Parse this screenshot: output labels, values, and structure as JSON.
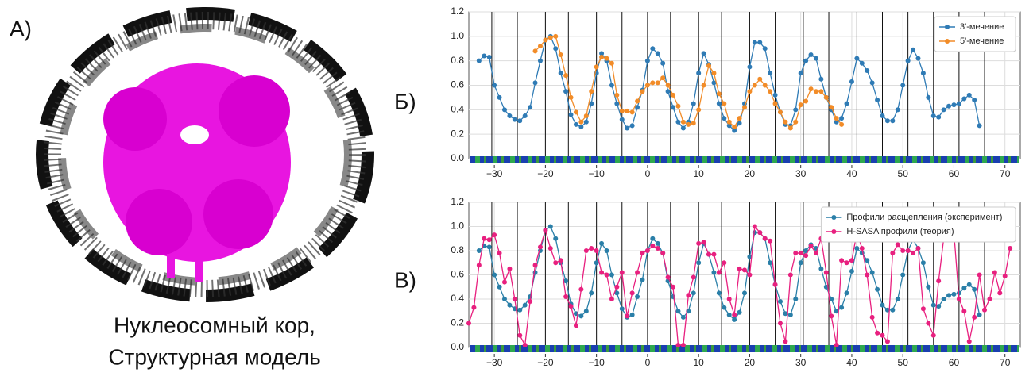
{
  "panels": {
    "a": "А)",
    "b": "Б)",
    "c": "В)"
  },
  "caption": [
    "Нуклеосомный кор,",
    "Структурная модель"
  ],
  "chart_data": [
    {
      "type": "line",
      "xlim": [
        -35,
        73
      ],
      "ylim": [
        0,
        1.2
      ],
      "xticks": [
        {
          "value": -30,
          "label": "−30"
        },
        {
          "value": -20,
          "label": "−20"
        },
        {
          "value": -10,
          "label": "−10"
        },
        0,
        10,
        20,
        30,
        40,
        50,
        60,
        70
      ],
      "yticks": [
        {
          "value": 0,
          "label": "0.0"
        },
        0.2,
        0.4,
        0.6,
        0.8,
        {
          "value": 1,
          "label": "1.0"
        },
        1.2
      ],
      "grid": true,
      "legend": "upper right",
      "vlines": [
        -30.5,
        -25.5,
        -20,
        -15.5,
        -10,
        -5,
        0,
        4.5,
        10,
        14.5,
        20,
        25,
        30.5,
        35.5,
        41,
        46,
        51,
        56,
        61,
        66
      ],
      "series": [
        {
          "name": "3'-мечение",
          "color": "#2f7bb5",
          "x": [
            -33,
            -32,
            -31,
            -30,
            -29,
            -28,
            -27,
            -26,
            -25,
            -24,
            -23,
            -22,
            -21,
            -20,
            -19,
            -18,
            -17,
            -16,
            -15,
            -14,
            -13,
            -12,
            -11,
            -10,
            -9,
            -8,
            -7,
            -6,
            -5,
            -4,
            -3,
            -2,
            -1,
            0,
            1,
            2,
            3,
            4,
            5,
            6,
            7,
            8,
            9,
            10,
            11,
            12,
            13,
            14,
            15,
            16,
            17,
            18,
            19,
            20,
            21,
            22,
            23,
            24,
            25,
            26,
            27,
            28,
            29,
            30,
            31,
            32,
            33,
            34,
            35,
            36,
            37,
            38,
            39,
            40,
            41,
            42,
            43,
            44,
            45,
            46,
            47,
            48,
            49,
            50,
            51,
            52,
            53,
            54,
            55,
            56,
            57,
            58,
            59,
            60,
            61,
            62,
            63,
            64,
            65
          ],
          "values": [
            0.8,
            0.84,
            0.83,
            0.6,
            0.5,
            0.4,
            0.35,
            0.32,
            0.31,
            0.35,
            0.42,
            0.62,
            0.8,
            0.97,
            1.0,
            0.9,
            0.7,
            0.55,
            0.36,
            0.28,
            0.26,
            0.3,
            0.45,
            0.7,
            0.86,
            0.8,
            0.6,
            0.45,
            0.32,
            0.25,
            0.27,
            0.42,
            0.56,
            0.8,
            0.9,
            0.86,
            0.78,
            0.55,
            0.42,
            0.3,
            0.25,
            0.3,
            0.45,
            0.7,
            0.86,
            0.77,
            0.62,
            0.45,
            0.33,
            0.27,
            0.23,
            0.29,
            0.45,
            0.75,
            0.95,
            0.95,
            0.9,
            0.7,
            0.52,
            0.38,
            0.28,
            0.27,
            0.4,
            0.7,
            0.8,
            0.85,
            0.82,
            0.65,
            0.5,
            0.4,
            0.3,
            0.33,
            0.45,
            0.63,
            0.82,
            0.78,
            0.72,
            0.62,
            0.48,
            0.35,
            0.31,
            0.31,
            0.4,
            0.6,
            0.8,
            0.89,
            0.82,
            0.7,
            0.5,
            0.35,
            0.34,
            0.4,
            0.43,
            0.44,
            0.45,
            0.49,
            0.52,
            0.48,
            0.27
          ]
        },
        {
          "name": "5'-мечение",
          "color": "#f28c28",
          "x": [
            -22,
            -21,
            -20,
            -19,
            -18,
            -17,
            -16,
            -15,
            -14,
            -13,
            -12,
            -11,
            -10,
            -9,
            -8,
            -7,
            -6,
            -5,
            -4,
            -3,
            -2,
            -1,
            0,
            1,
            2,
            3,
            4,
            5,
            6,
            7,
            8,
            9,
            10,
            11,
            12,
            13,
            14,
            15,
            16,
            17,
            18,
            19,
            20,
            21,
            22,
            23,
            24,
            25,
            26,
            27,
            28,
            29,
            30,
            31,
            32,
            33,
            34,
            35,
            36,
            37,
            38
          ],
          "values": [
            0.88,
            0.92,
            0.97,
            0.99,
            1.0,
            0.85,
            0.68,
            0.5,
            0.38,
            0.3,
            0.35,
            0.55,
            0.75,
            0.83,
            0.82,
            0.78,
            0.52,
            0.39,
            0.39,
            0.38,
            0.47,
            0.55,
            0.6,
            0.62,
            0.62,
            0.66,
            0.6,
            0.52,
            0.43,
            0.3,
            0.28,
            0.29,
            0.4,
            0.6,
            0.76,
            0.7,
            0.53,
            0.45,
            0.3,
            0.26,
            0.33,
            0.42,
            0.55,
            0.6,
            0.65,
            0.6,
            0.55,
            0.45,
            0.38,
            0.3,
            0.25,
            0.3,
            0.44,
            0.47,
            0.57,
            0.55,
            0.55,
            0.5,
            0.42,
            0.33,
            0.28
          ]
        }
      ]
    },
    {
      "type": "line",
      "xlim": [
        -35,
        73
      ],
      "ylim": [
        0,
        1.2
      ],
      "xticks": [
        {
          "value": -30,
          "label": "−30"
        },
        {
          "value": -20,
          "label": "−20"
        },
        {
          "value": -10,
          "label": "−10"
        },
        0,
        10,
        20,
        30,
        40,
        50,
        60,
        70
      ],
      "yticks": [
        {
          "value": 0,
          "label": "0.0"
        },
        0.2,
        0.4,
        0.6,
        0.8,
        {
          "value": 1,
          "label": "1.0"
        },
        1.2
      ],
      "grid": true,
      "legend": "upper right",
      "vlines": [
        -30.5,
        -25.5,
        -20,
        -15.5,
        -10,
        -5,
        0,
        4.5,
        10,
        14.5,
        20,
        25,
        30.5,
        35.5,
        41,
        46,
        51,
        56,
        61,
        66
      ],
      "series": [
        {
          "name": "Профили расщепления (эксперимент)",
          "color": "#2a7fa8",
          "x": [
            -33,
            -32,
            -31,
            -30,
            -29,
            -28,
            -27,
            -26,
            -25,
            -24,
            -23,
            -22,
            -21,
            -20,
            -19,
            -18,
            -17,
            -16,
            -15,
            -14,
            -13,
            -12,
            -11,
            -10,
            -9,
            -8,
            -7,
            -6,
            -5,
            -4,
            -3,
            -2,
            -1,
            0,
            1,
            2,
            3,
            4,
            5,
            6,
            7,
            8,
            9,
            10,
            11,
            12,
            13,
            14,
            15,
            16,
            17,
            18,
            19,
            20,
            21,
            22,
            23,
            24,
            25,
            26,
            27,
            28,
            29,
            30,
            31,
            32,
            33,
            34,
            35,
            36,
            37,
            38,
            39,
            40,
            41,
            42,
            43,
            44,
            45,
            46,
            47,
            48,
            49,
            50,
            51,
            52,
            53,
            54,
            55,
            56,
            57,
            58,
            59,
            60,
            61,
            62,
            63,
            64,
            65
          ],
          "values": [
            0.8,
            0.84,
            0.83,
            0.6,
            0.5,
            0.4,
            0.35,
            0.32,
            0.31,
            0.35,
            0.42,
            0.62,
            0.8,
            0.97,
            1.0,
            0.9,
            0.7,
            0.55,
            0.36,
            0.28,
            0.26,
            0.3,
            0.45,
            0.7,
            0.86,
            0.8,
            0.6,
            0.45,
            0.32,
            0.25,
            0.27,
            0.42,
            0.56,
            0.8,
            0.9,
            0.86,
            0.78,
            0.55,
            0.42,
            0.3,
            0.25,
            0.3,
            0.45,
            0.7,
            0.86,
            0.77,
            0.62,
            0.45,
            0.33,
            0.27,
            0.23,
            0.29,
            0.45,
            0.75,
            0.95,
            0.95,
            0.9,
            0.7,
            0.52,
            0.38,
            0.28,
            0.27,
            0.4,
            0.7,
            0.8,
            0.85,
            0.82,
            0.65,
            0.5,
            0.4,
            0.3,
            0.33,
            0.45,
            0.63,
            0.82,
            0.78,
            0.72,
            0.62,
            0.48,
            0.35,
            0.31,
            0.31,
            0.4,
            0.6,
            0.8,
            0.89,
            0.82,
            0.7,
            0.5,
            0.35,
            0.34,
            0.4,
            0.43,
            0.44,
            0.45,
            0.49,
            0.52,
            0.48,
            0.27
          ]
        },
        {
          "name": "H-SASA профили (теория)",
          "color": "#e8207f",
          "x": [
            -35,
            -34,
            -33,
            -32,
            -31,
            -30,
            -29,
            -28,
            -27,
            -26,
            -25,
            -24,
            -23,
            -22,
            -21,
            -20,
            -19,
            -18,
            -17,
            -16,
            -15,
            -14,
            -13,
            -12,
            -11,
            -10,
            -9,
            -8,
            -7,
            -6,
            -5,
            -4,
            -3,
            -2,
            -1,
            0,
            1,
            2,
            3,
            4,
            5,
            6,
            7,
            8,
            9,
            10,
            11,
            12,
            13,
            14,
            15,
            16,
            17,
            18,
            19,
            20,
            21,
            22,
            23,
            24,
            25,
            26,
            27,
            28,
            29,
            30,
            31,
            32,
            33,
            34,
            35,
            36,
            37,
            38,
            39,
            40,
            41,
            42,
            43,
            44,
            45,
            46,
            47,
            48,
            49,
            50,
            51,
            52,
            53,
            54,
            55,
            56,
            57,
            58,
            59,
            60,
            61,
            62,
            63,
            64,
            65,
            66,
            67,
            68,
            69,
            70,
            71
          ],
          "values": [
            0.2,
            0.33,
            0.68,
            0.9,
            0.89,
            0.93,
            0.78,
            0.54,
            0.65,
            0.4,
            0.1,
            0.02,
            0.38,
            0.68,
            0.83,
            0.97,
            0.82,
            0.7,
            0.72,
            0.42,
            0.34,
            0.18,
            0.48,
            0.8,
            0.82,
            0.8,
            0.62,
            0.6,
            0.4,
            0.5,
            0.62,
            0.26,
            0.45,
            0.62,
            0.78,
            0.8,
            0.84,
            0.82,
            0.78,
            0.58,
            0.5,
            0.02,
            0.02,
            0.43,
            0.58,
            0.86,
            0.87,
            0.77,
            0.77,
            0.62,
            0.7,
            0.4,
            0.27,
            0.65,
            0.64,
            0.6,
            1.0,
            0.95,
            0.9,
            0.88,
            0.52,
            0.2,
            0.05,
            0.6,
            0.78,
            0.78,
            0.76,
            0.84,
            0.78,
            0.9,
            0.62,
            0.26,
            0.02,
            0.72,
            0.7,
            0.72,
            0.95,
            0.82,
            0.6,
            0.25,
            0.12,
            0.1,
            0.05,
            0.78,
            0.85,
            0.8,
            0.8,
            0.78,
            0.82,
            0.32,
            0.2,
            0.1,
            0.55,
            0.9,
            1.0,
            0.95,
            0.4,
            0.3,
            0.05,
            0.25,
            0.6,
            0.31,
            0.4,
            0.62,
            0.45,
            0.59,
            0.82
          ]
        }
      ]
    }
  ]
}
